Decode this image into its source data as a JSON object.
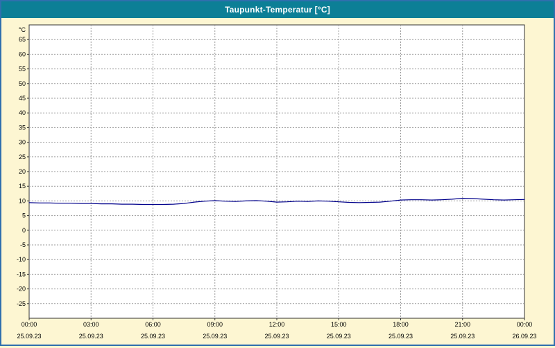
{
  "title_bar": {
    "title": "Taupunkt-Temperatur [°C]"
  },
  "colors": {
    "titlebar_bg": "#0c7f96",
    "titlebar_fg": "#ffffff",
    "window_bg": "#fdf6d2",
    "border": "#2f6fae",
    "plot_bg": "#ffffff",
    "grid": "#9a9a9a",
    "line": "#00008b",
    "text": "#000000"
  },
  "chart_data": {
    "type": "line",
    "title": "Taupunkt-Temperatur [°C]",
    "ylabel": "°C",
    "xlabel": "",
    "ylim": [
      -30,
      70
    ],
    "ytick_start": -25,
    "ytick_end": 65,
    "ytick_step": 5,
    "grid": true,
    "legend": "none",
    "series_name": "Taupunkt",
    "x_hours": [
      0,
      0.5,
      1,
      1.5,
      2,
      2.5,
      3,
      3.5,
      4,
      4.5,
      5,
      5.5,
      6,
      6.5,
      7,
      7.5,
      8,
      8.5,
      9,
      9.5,
      10,
      10.5,
      11,
      11.5,
      12,
      12.5,
      13,
      13.5,
      14,
      14.5,
      15,
      15.5,
      16,
      16.5,
      17,
      17.5,
      18,
      18.5,
      19,
      19.5,
      20,
      20.5,
      21,
      21.5,
      22,
      22.5,
      23,
      23.5,
      24
    ],
    "values": [
      9.4,
      9.3,
      9.3,
      9.2,
      9.2,
      9.1,
      9.1,
      9.0,
      9.0,
      8.9,
      8.9,
      8.8,
      8.8,
      8.8,
      8.9,
      9.1,
      9.6,
      9.9,
      10.1,
      9.9,
      9.8,
      10.0,
      10.1,
      9.9,
      9.6,
      9.7,
      9.9,
      9.8,
      10.0,
      9.9,
      9.7,
      9.5,
      9.4,
      9.5,
      9.6,
      9.9,
      10.3,
      10.4,
      10.4,
      10.3,
      10.4,
      10.6,
      10.9,
      10.8,
      10.6,
      10.4,
      10.3,
      10.4,
      10.5
    ],
    "xticks": [
      {
        "hour": 0,
        "time": "00:00",
        "date": "25.09.23"
      },
      {
        "hour": 3,
        "time": "03:00",
        "date": "25.09.23"
      },
      {
        "hour": 6,
        "time": "06:00",
        "date": "25.09.23"
      },
      {
        "hour": 9,
        "time": "09:00",
        "date": "25.09.23"
      },
      {
        "hour": 12,
        "time": "12:00",
        "date": "25.09.23"
      },
      {
        "hour": 15,
        "time": "15:00",
        "date": "25.09.23"
      },
      {
        "hour": 18,
        "time": "18:00",
        "date": "25.09.23"
      },
      {
        "hour": 21,
        "time": "21:00",
        "date": "25.09.23"
      },
      {
        "hour": 24,
        "time": "00:00",
        "date": "26.09.23"
      }
    ]
  }
}
